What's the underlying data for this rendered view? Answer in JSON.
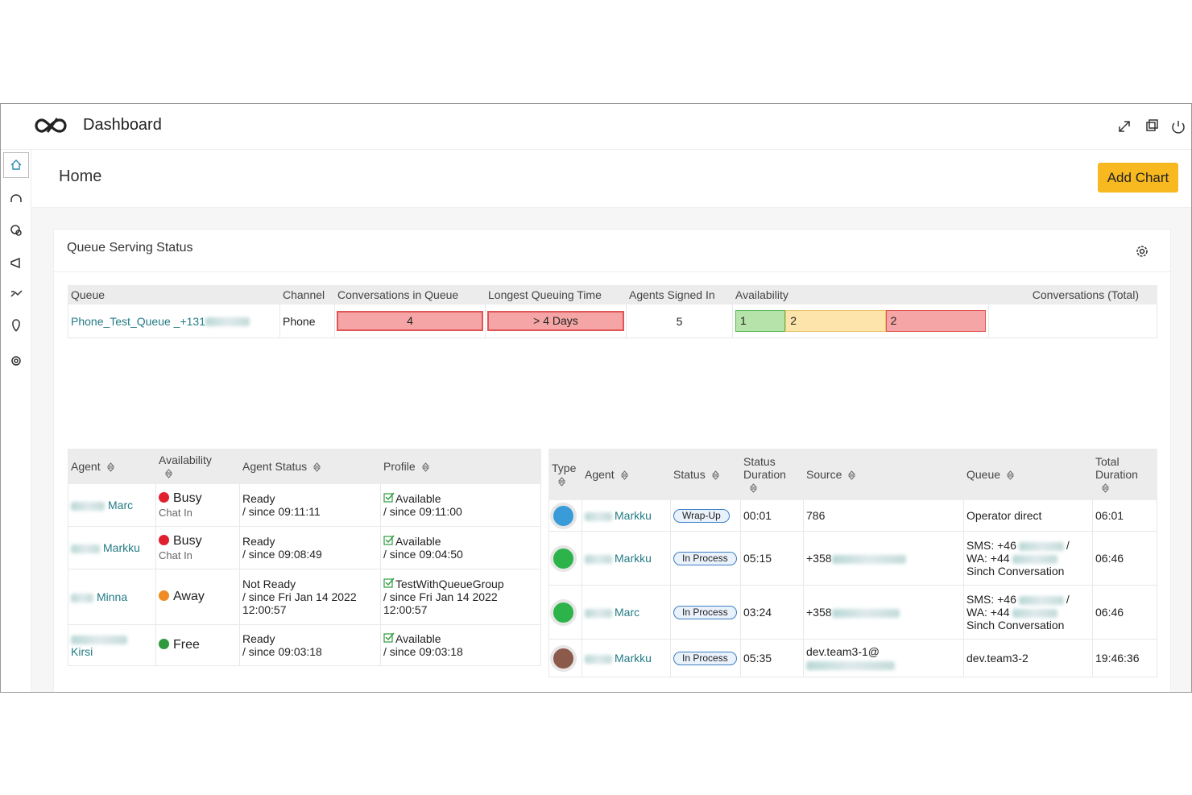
{
  "header": {
    "title": "Dashboard"
  },
  "page": {
    "title": "Home",
    "add_button": "Add Chart"
  },
  "widget": {
    "title": "Queue Serving Status",
    "queue_table": {
      "columns": [
        "Queue",
        "Channel",
        "Conversations in Queue",
        "Longest Queuing Time",
        "Agents Signed In",
        "Availability",
        "Conversations (Total)"
      ],
      "row": {
        "queue": "Phone_Test_Queue _+131",
        "channel": "Phone",
        "conversations_in_queue": 4,
        "longest_queuing_time": "> 4 Days",
        "agents_signed_in": 5,
        "availability": [
          1,
          2,
          2
        ],
        "availability_colors": [
          "#b6e3a9",
          "#fde4ab",
          "#f5a5a5"
        ]
      }
    },
    "agents_table": {
      "columns": [
        "Agent",
        "Availability",
        "Agent Status",
        "Profile"
      ],
      "rows": [
        {
          "agent": "Marc",
          "availability": "Busy",
          "availability_color": "#e0202f",
          "availability_sub": "Chat In",
          "status": "Ready",
          "status_since": "/ since 09:11:11",
          "profile": "Available",
          "profile_since": "/ since 09:11:00"
        },
        {
          "agent": "Markku",
          "availability": "Busy",
          "availability_color": "#e0202f",
          "availability_sub": "Chat In",
          "status": "Ready",
          "status_since": "/ since 09:08:49",
          "profile": "Available",
          "profile_since": "/ since 09:04:50"
        },
        {
          "agent": "Minna",
          "availability": "Away",
          "availability_color": "#f08a24",
          "status": "Not Ready",
          "status_since": "/ since Fri Jan 14 2022 12:00:57",
          "profile": "TestWithQueueGroup",
          "profile_since": "/ since Fri Jan 14 2022 12:00:57"
        },
        {
          "agent": "Kirsi",
          "availability": "Free",
          "availability_color": "#2e9a3e",
          "status": "Ready",
          "status_since": "/ since 09:03:18",
          "profile": "Available",
          "profile_since": "/ since 09:03:18"
        }
      ]
    },
    "conversations_table": {
      "columns": [
        "Type",
        "Agent",
        "Status",
        "Status Duration",
        "Source",
        "Queue",
        "Total Duration"
      ],
      "rows": [
        {
          "icon_color": "#3a9bd9",
          "agent": "Markku",
          "status": "Wrap-Up",
          "status_duration": "00:01",
          "source": "786",
          "queue": {
            "name": "Operator direct"
          },
          "total_duration": "06:01"
        },
        {
          "icon_color": "#2cb34a",
          "agent": "Markku",
          "status": "In Process",
          "status_duration": "05:15",
          "source": "+358",
          "queue": {
            "sms": "SMS: +46",
            "sep": "/",
            "wa": "WA: +44",
            "name": "Sinch Conversation"
          },
          "total_duration": "06:46"
        },
        {
          "icon_color": "#2cb34a",
          "agent": "Marc",
          "status": "In Process",
          "status_duration": "03:24",
          "source": "+358",
          "queue": {
            "sms": "SMS: +46",
            "sep": "/",
            "wa": "WA: +44",
            "name": "Sinch Conversation"
          },
          "total_duration": "06:46"
        },
        {
          "icon_color": "#8b5a4a",
          "agent": "Markku",
          "status": "In Process",
          "status_duration": "05:35",
          "source": "dev.team3-1@",
          "queue": {
            "name": "dev.team3-2"
          },
          "total_duration": "19:46:36"
        }
      ]
    }
  }
}
